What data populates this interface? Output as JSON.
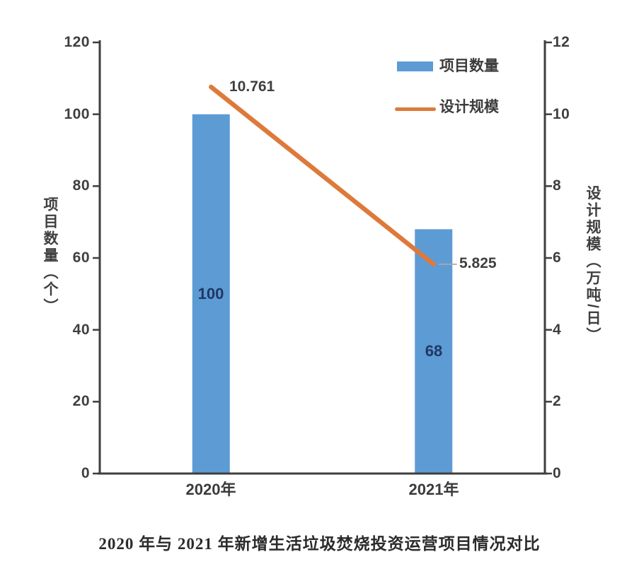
{
  "chart_data": {
    "type": "bar",
    "subtype": "bar-line-combo",
    "title": "2020 年与 2021 年新增生活垃圾焚烧投资运营项目情况对比",
    "categories": [
      "2020年",
      "2021年"
    ],
    "series": [
      {
        "name": "项目数量",
        "type": "bar",
        "axis": "left",
        "values": [
          100,
          68
        ],
        "labels": [
          "100",
          "68"
        ]
      },
      {
        "name": "设计规模",
        "type": "line",
        "axis": "right",
        "values": [
          10.761,
          5.825
        ],
        "labels": [
          "10.761",
          "5.825"
        ]
      }
    ],
    "left_axis": {
      "title": "项目数量（个）",
      "min": 0,
      "max": 120,
      "ticks": [
        "120",
        "100",
        "80",
        "60",
        "40",
        "20",
        "0"
      ]
    },
    "right_axis": {
      "title": "设计规模（万吨/日）",
      "min": 0,
      "max": 12,
      "ticks": [
        "12",
        "10",
        "8",
        "6",
        "4",
        "2",
        "0"
      ]
    },
    "legend_position": "top-right-inside",
    "grid": false
  },
  "colors": {
    "bar": "#5D9BD5",
    "line": "#DD7A3B",
    "axis": "#3e3e3e",
    "leader": "#a9a9a9",
    "bar_label": "#1f3864"
  }
}
